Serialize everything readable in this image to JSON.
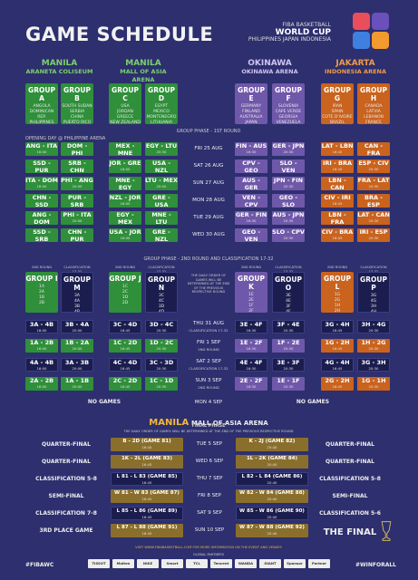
{
  "title": "GAME SCHEDULE",
  "logo": {
    "line1": "FIBA BASKETBALL",
    "line2": "WORLD CUP",
    "line3": "PHILIPPINES JAPAN INDONESIA"
  },
  "venues": [
    {
      "city": "MANILA",
      "arena": "ARANETA COLISEUM"
    },
    {
      "city": "MANILA",
      "arena": "MALL OF ASIA ARENA"
    },
    {
      "city": "OKINAWA",
      "arena": "OKINAWA ARENA"
    },
    {
      "city": "JAKARTA",
      "arena": "INDONESIA ARENA"
    }
  ],
  "groups": [
    {
      "name": "GROUP A",
      "teams": "ANGOLA\nDOMINICAN REP.\nPHILIPPINES\nITALY",
      "color": "green"
    },
    {
      "name": "GROUP B",
      "teams": "SOUTH SUDAN\nSERBIA\nCHINA\nPUERTO RICO",
      "color": "green"
    },
    {
      "name": "GROUP C",
      "teams": "USA\nJORDAN\nGREECE\nNEW ZEALAND",
      "color": "green"
    },
    {
      "name": "GROUP D",
      "teams": "EGYPT\nMEXICO\nMONTENEGRO\nLITHUANIA",
      "color": "green"
    },
    {
      "name": "GROUP E",
      "teams": "GERMANY\nFINLAND\nAUSTRALIA\nJAPAN",
      "color": "purple"
    },
    {
      "name": "GROUP F",
      "teams": "SLOVENIA\nCAPE VERDE\nGEORGIA\nVENEZUELA",
      "color": "purple"
    },
    {
      "name": "GROUP G",
      "teams": "IRAN\nSPAIN\nCOTE D'IVOIRE\nBRAZIL",
      "color": "orange"
    },
    {
      "name": "GROUP H",
      "teams": "CANADA\nLATVIA\nLEBANON\nFRANCE",
      "color": "orange"
    }
  ],
  "phase1_label": "GROUP PHASE - 1ST ROUND",
  "opening_label": "OPENING DAY @ PHILIPPINE ARENA",
  "phase1_rows": [
    {
      "date": "FRI 25 AUG",
      "games": [
        [
          "ANG - ITA",
          "16:00"
        ],
        [
          "DOM - PHI",
          "20:00"
        ],
        [
          "MEX - MNE",
          "16:00"
        ],
        [
          "EGY - LTU",
          "20:30"
        ],
        [
          "FIN - AUS",
          "16:30"
        ],
        [
          "GER - JPN",
          "20:30"
        ],
        [
          "LAT - LBN",
          "16:45"
        ],
        [
          "CAN - FRA",
          "20:30"
        ]
      ]
    },
    {
      "date": "SAT 26 AUG",
      "games": [
        [
          "SSD - PUR",
          "16:00"
        ],
        [
          "SRB - CHN",
          "20:00"
        ],
        [
          "JOR - GRE",
          "16:00"
        ],
        [
          "USA - NZL",
          "20:40"
        ],
        [
          "CPV - GEO",
          "16:30"
        ],
        [
          "SLO - VEN",
          "20:30"
        ],
        [
          "IRI - BRA",
          "16:45"
        ],
        [
          "ESP - CIV",
          "20:30"
        ]
      ]
    },
    {
      "date": "SUN 27 AUG",
      "games": [
        [
          "ITA - DOM",
          "16:00"
        ],
        [
          "PHI - ANG",
          "20:00"
        ],
        [
          "MNE - EGY",
          "16:00"
        ],
        [
          "LTU - MEX",
          "20:00"
        ],
        [
          "AUS - GER",
          "16:30"
        ],
        [
          "JPN - FIN",
          "20:30"
        ],
        [
          "LBN - CAN",
          "16:45"
        ],
        [
          "FRA - LAT",
          "20:30"
        ]
      ]
    },
    {
      "date": "MON 28 AUG",
      "games": [
        [
          "CHN - SSD",
          "16:00"
        ],
        [
          "PUR - SRB",
          "20:00"
        ],
        [
          "NZL - JOR",
          "16:00"
        ],
        [
          "GRE - USA",
          "20:40"
        ],
        [
          "VEN - CPV",
          "16:30"
        ],
        [
          "GEO - SLO",
          "20:30"
        ],
        [
          "CIV - IRI",
          "16:45"
        ],
        [
          "BRA - ESP",
          "20:30"
        ]
      ]
    },
    {
      "date": "TUE 29 AUG",
      "games": [
        [
          "ANG - DOM",
          "16:00"
        ],
        [
          "PHI - ITA",
          "20:00"
        ],
        [
          "EGY - MEX",
          "16:00"
        ],
        [
          "MNE - LTU",
          "20:00"
        ],
        [
          "GER - FIN",
          "16:30"
        ],
        [
          "AUS - JPN",
          "20:30"
        ],
        [
          "LBN - FRA",
          "16:45"
        ],
        [
          "LAT - CAN",
          "20:30"
        ]
      ]
    },
    {
      "date": "WED 30 AUG",
      "games": [
        [
          "SSD - SRB",
          "16:00"
        ],
        [
          "CHN - PUR",
          "20:00"
        ],
        [
          "USA - JOR",
          "16:00"
        ],
        [
          "GRE - NZL",
          "20:40"
        ],
        [
          "GEO - VEN",
          "16:30"
        ],
        [
          "SLO - CPV",
          "20:30"
        ],
        [
          "CIV - BRA",
          "16:45"
        ],
        [
          "IRI - ESP",
          "20:30"
        ]
      ]
    }
  ],
  "phase2_label": "GROUP PHASE - 2ND ROUND AND CLASSIFICATION 17-32",
  "round_label": "2ND ROUND",
  "class_label": "CLASSIFICATION 17-32",
  "phase2_note": "THE DAILY ORDER OF GAMES WILL BE DETERMINED AT THE END OF THE PREVIOUS RESPECTIVE ROUND",
  "phase2_groups": [
    {
      "name": "GROUP I",
      "teams": "1A\n2A\n1B\n2B",
      "color": "green"
    },
    {
      "name": "GROUP M",
      "teams": "3A\n4A\n3B\n4B",
      "color": "dark"
    },
    {
      "name": "GROUP J",
      "teams": "1C\n2C\n1D\n2D",
      "color": "green"
    },
    {
      "name": "GROUP N",
      "teams": "3C\n4C\n3D\n4D",
      "color": "dark"
    },
    {
      "name": "GROUP K",
      "teams": "1E\n2E\n1F\n2F",
      "color": "purple"
    },
    {
      "name": "GROUP O",
      "teams": "3E\n4E\n3F\n4F",
      "color": "dark"
    },
    {
      "name": "GROUP L",
      "teams": "1G\n2G\n1H\n2H",
      "color": "orange"
    },
    {
      "name": "GROUP P",
      "teams": "3G\n4G\n3H\n4H",
      "color": "dark"
    }
  ],
  "phase2_rows": [
    {
      "date": "THU 31 AUG",
      "sub": "CLASSIFICATION 17-32",
      "games": [
        [
          "3A - 4B",
          "16:00",
          "dark"
        ],
        [
          "3B - 4A",
          "20:00",
          "dark"
        ],
        [
          "3C - 4D",
          "16:45",
          "dark"
        ],
        [
          "3D - 4C",
          "20:30",
          "dark"
        ],
        [
          "3E - 4F",
          "16:30",
          "dark"
        ],
        [
          "3F - 4E",
          "20:30",
          "dark"
        ],
        [
          "3G - 4H",
          "16:45",
          "dark"
        ],
        [
          "3H - 4G",
          "20:30",
          "dark"
        ]
      ]
    },
    {
      "date": "FRI 1 SEP",
      "sub": "2ND ROUND",
      "games": [
        [
          "1A - 2B",
          "16:00",
          "green"
        ],
        [
          "1B - 2A",
          "20:00",
          "green"
        ],
        [
          "1C - 2D",
          "16:45",
          "green"
        ],
        [
          "1D - 2C",
          "20:30",
          "green"
        ],
        [
          "1E - 2F",
          "16:30",
          "purple"
        ],
        [
          "1F - 2E",
          "20:30",
          "purple"
        ],
        [
          "1G - 2H",
          "16:45",
          "orange"
        ],
        [
          "1H - 2G",
          "20:30",
          "orange"
        ]
      ]
    },
    {
      "date": "SAT 2 SEP",
      "sub": "CLASSIFICATION 17-32",
      "games": [
        [
          "4A - 4B",
          "16:00",
          "dark"
        ],
        [
          "3A - 3B",
          "20:00",
          "dark"
        ],
        [
          "4C - 4D",
          "16:45",
          "dark"
        ],
        [
          "3C - 3D",
          "20:30",
          "dark"
        ],
        [
          "4E - 4F",
          "16:30",
          "dark"
        ],
        [
          "3E - 3F",
          "20:30",
          "dark"
        ],
        [
          "4G - 4H",
          "16:45",
          "dark"
        ],
        [
          "3G - 3H",
          "20:30",
          "dark"
        ]
      ]
    },
    {
      "date": "SUN 3 SEP",
      "sub": "2ND ROUND",
      "games": [
        [
          "2A - 2B",
          "16:00",
          "green"
        ],
        [
          "1A - 1B",
          "20:00",
          "green"
        ],
        [
          "2C - 2D",
          "16:45",
          "green"
        ],
        [
          "1C - 1D",
          "20:30",
          "green"
        ],
        [
          "2E - 2F",
          "16:30",
          "purple"
        ],
        [
          "1E - 1F",
          "20:30",
          "purple"
        ],
        [
          "2G - 2H",
          "16:45",
          "orange"
        ],
        [
          "1G - 1H",
          "20:30",
          "orange"
        ]
      ]
    }
  ],
  "no_games": "NO GAMES",
  "mon4": "MON 4 SEP",
  "final_venue": {
    "city": "MANILA",
    "arena": "MALL OF ASIA ARENA"
  },
  "final_phase_label": "FINAL PHASE",
  "final_note": "THE DAILY ORDER OF GAMES WILL BE DETERMINED AT THE END OF THE PREVIOUS RESPECTIVE ROUND",
  "final_rows": [
    {
      "label_l": "QUARTER-FINAL",
      "label_r": "QUARTER-FINAL",
      "date": "TUE 5 SEP",
      "l": [
        "B - 2D (GAME 81)",
        "16:45"
      ],
      "r": [
        "K - 2J (GAME 82)",
        "20:40"
      ],
      "col": "gold"
    },
    {
      "label_l": "QUARTER-FINAL",
      "label_r": "QUARTER-FINAL",
      "date": "WED 6 SEP",
      "l": [
        "1K - 2L (GAME 83)",
        "16:45"
      ],
      "r": [
        "1L - 2K (GAME 84)",
        "20:40"
      ],
      "col": "gold"
    },
    {
      "label_l": "CLASSIFICATION 5-8",
      "label_r": "CLASSIFICATION 5-8",
      "date": "THU 7 SEP",
      "l": [
        "L 81 - L 83 (GAME 85)",
        "16:45"
      ],
      "r": [
        "L 82 - L 84 (GAME 86)",
        "20:40"
      ],
      "col": "dark"
    },
    {
      "label_l": "SEMI-FINAL",
      "label_r": "SEMI-FINAL",
      "date": "FRI 8 SEP",
      "l": [
        "W 81 - W 83 (GAME 87)",
        "16:45"
      ],
      "r": [
        "W 82 - W 84 (GAME 88)",
        "20:40"
      ],
      "col": "gold"
    },
    {
      "label_l": "CLASSIFICATION 7-8",
      "label_r": "CLASSIFICATION 5-6",
      "date": "SAT 9 SEP",
      "l": [
        "L 85 - L 86 (GAME 89)",
        "16:45"
      ],
      "r": [
        "W 85 - W 86 (GAME 90)",
        "20:40"
      ],
      "col": "dark"
    },
    {
      "label_l": "3RD PLACE GAME",
      "label_r": "THE FINAL",
      "date": "SUN 10 SEP",
      "l": [
        "L 87 - L 88 (GAME 91)",
        "16:45"
      ],
      "r": [
        "W 87 - W 88 (GAME 92)",
        "20:40"
      ],
      "col": "gold"
    }
  ],
  "footer_note": "VISIT WWW.FIBABASKETBALL.COM FOR MORE INFORMATION ON THE EVENT AND VENUES",
  "global_partners": "GLOBAL PARTNERS",
  "sponsors": [
    "TISSOT",
    "Molten",
    "NIKE",
    "Smart",
    "TCL",
    "Tencent",
    "WANDA",
    "GIANT",
    "Sponsor",
    "Partner"
  ],
  "hashtag_l": "#FIBAWC",
  "hashtag_r": "#WINFORALL",
  "colors": {
    "bg": "#2d2f6e",
    "green": "#2f8f3a",
    "purple": "#6f58a9",
    "orange": "#c9631e",
    "gold": "#8a6f2c"
  }
}
